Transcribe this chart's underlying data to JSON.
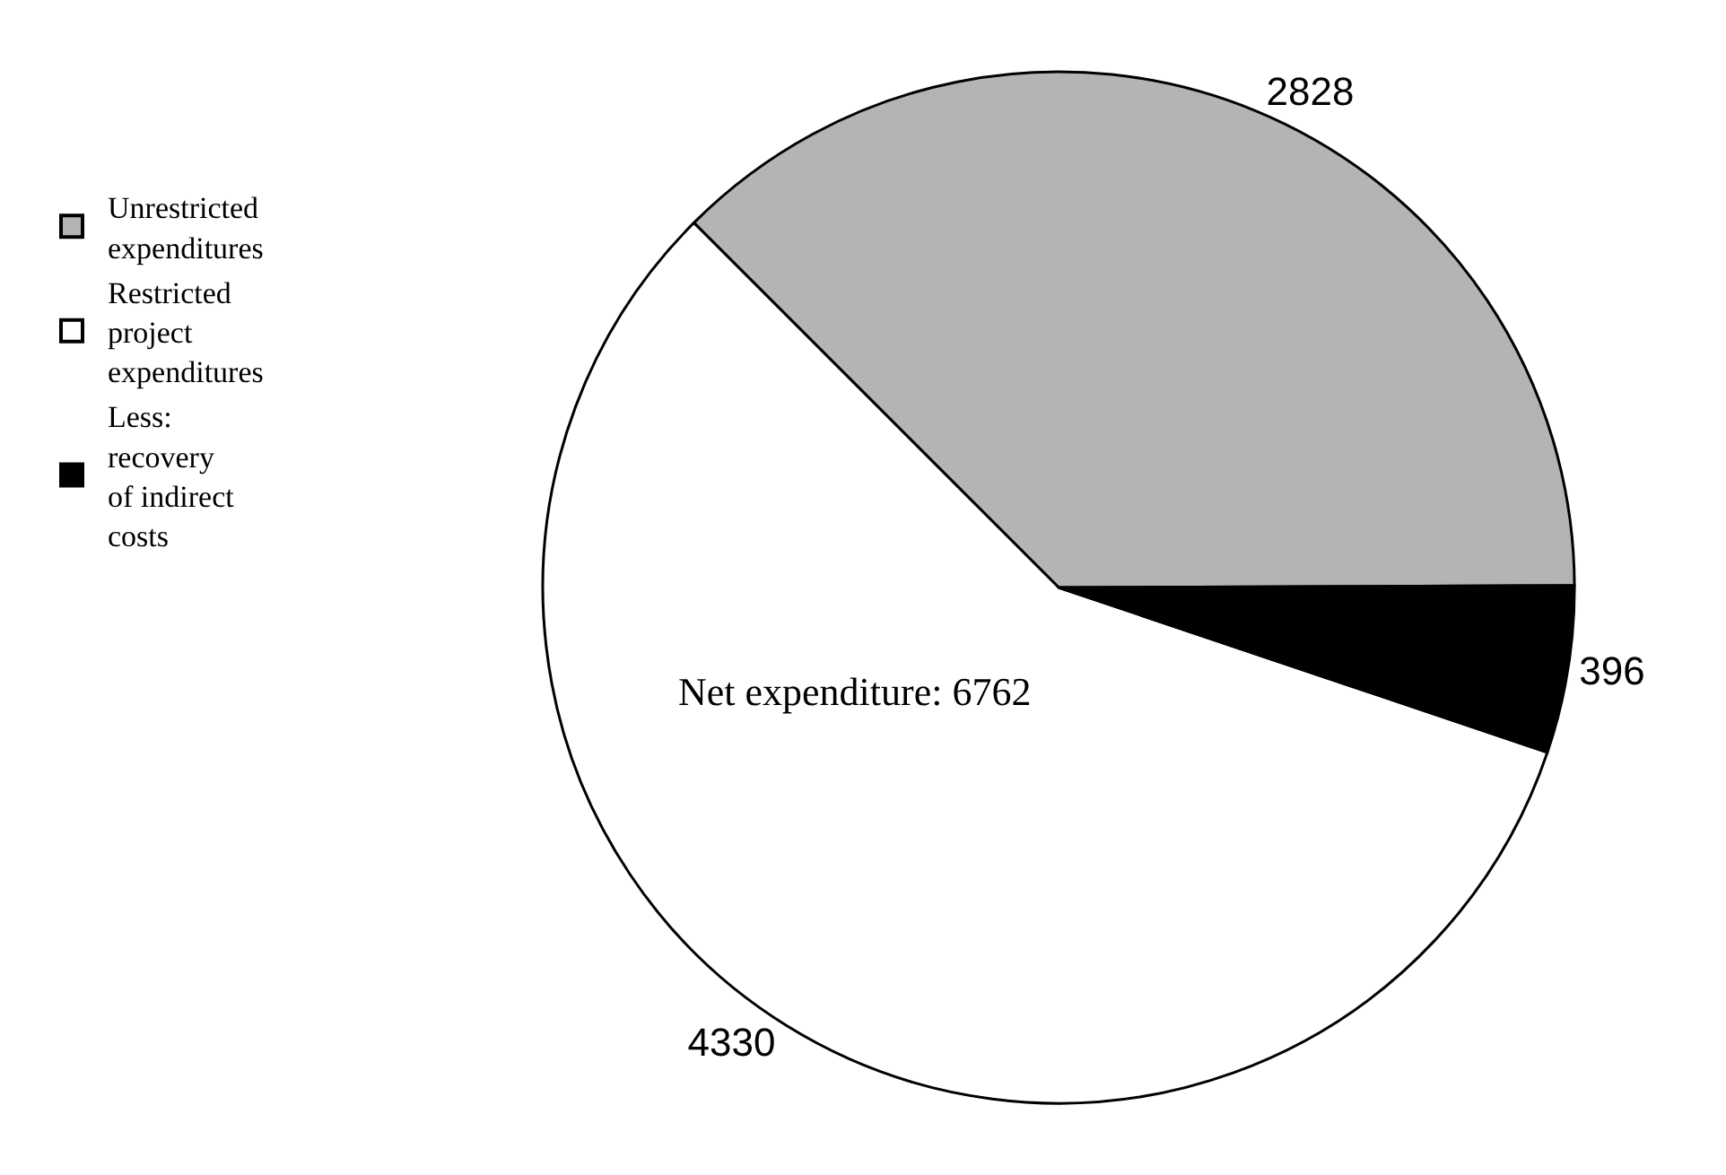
{
  "chart_data": {
    "type": "pie",
    "categories": [
      "Unrestricted\nexpenditures",
      "Restricted\nproject\nexpenditures",
      "Less:\nrecovery\nof indirect\ncosts"
    ],
    "values": [
      2828,
      4330,
      396
    ],
    "colors": [
      "#b4b4b4",
      "#ffffff",
      "#000000"
    ],
    "data_labels": true,
    "legend": "left",
    "annotations": [
      "Net expenditure: 6762"
    ]
  }
}
